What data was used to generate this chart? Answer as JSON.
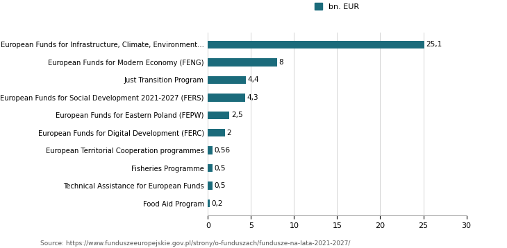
{
  "categories": [
    "Food Aid Program",
    "Technical Assistance for European Funds",
    "Fisheries Programme",
    "European Territorial Cooperation programmes",
    "European Funds for Digital Development (FERC)",
    "European Funds for Eastern Poland (FEPW)",
    "European Funds for Social Development 2021-2027 (FERS)",
    "Just Transition Program",
    "European Funds for Modern Economy (FENG)",
    "European Funds for Infrastructure, Climate, Environment..."
  ],
  "values": [
    0.2,
    0.5,
    0.5,
    0.56,
    2,
    2.5,
    4.3,
    4.4,
    8,
    25.1
  ],
  "labels": [
    "0,2",
    "0,5",
    "0,5",
    "0,56",
    "2",
    "2,5",
    "4,3",
    "4,4",
    "8",
    "25,1"
  ],
  "bar_color": "#1b6b7b",
  "legend_label": "bn. EUR",
  "xlim": [
    0,
    30
  ],
  "xticks": [
    0,
    5,
    10,
    15,
    20,
    25,
    30
  ],
  "source_text": "Source: https://www.funduszeeuropejskie.gov.pl/strony/o-funduszach/fundusze-na-lata-2021-2027/",
  "background_color": "#ffffff",
  "bar_height": 0.45
}
